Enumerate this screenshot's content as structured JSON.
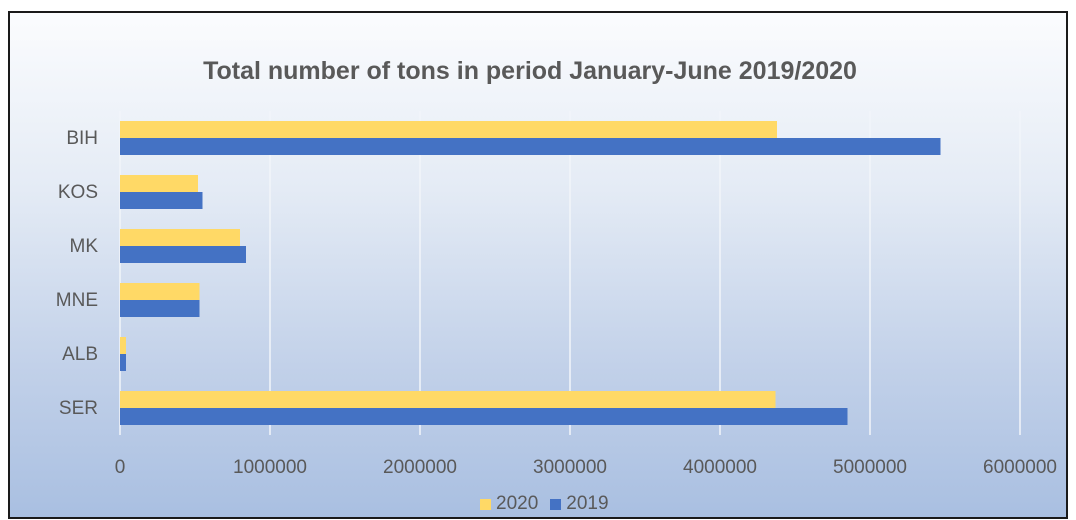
{
  "chart_data": {
    "type": "bar",
    "orientation": "horizontal",
    "title": "Total number of tons in period January-June 2019/2020",
    "xlabel": "",
    "ylabel": "",
    "categories": [
      "BIH",
      "KOS",
      "MK",
      "MNE",
      "ALB",
      "SER"
    ],
    "series": [
      {
        "name": "2020",
        "color": "#ffd966",
        "values": [
          4380000,
          520000,
          800000,
          530000,
          40000,
          4370000
        ]
      },
      {
        "name": "2019",
        "color": "#4472c4",
        "values": [
          5470000,
          550000,
          840000,
          530000,
          40000,
          4850000
        ]
      }
    ],
    "xlim": [
      0,
      6000000
    ],
    "xticks": [
      "0",
      "1000000",
      "2000000",
      "3000000",
      "4000000",
      "5000000",
      "6000000"
    ],
    "grid": true,
    "legend_position": "bottom"
  }
}
